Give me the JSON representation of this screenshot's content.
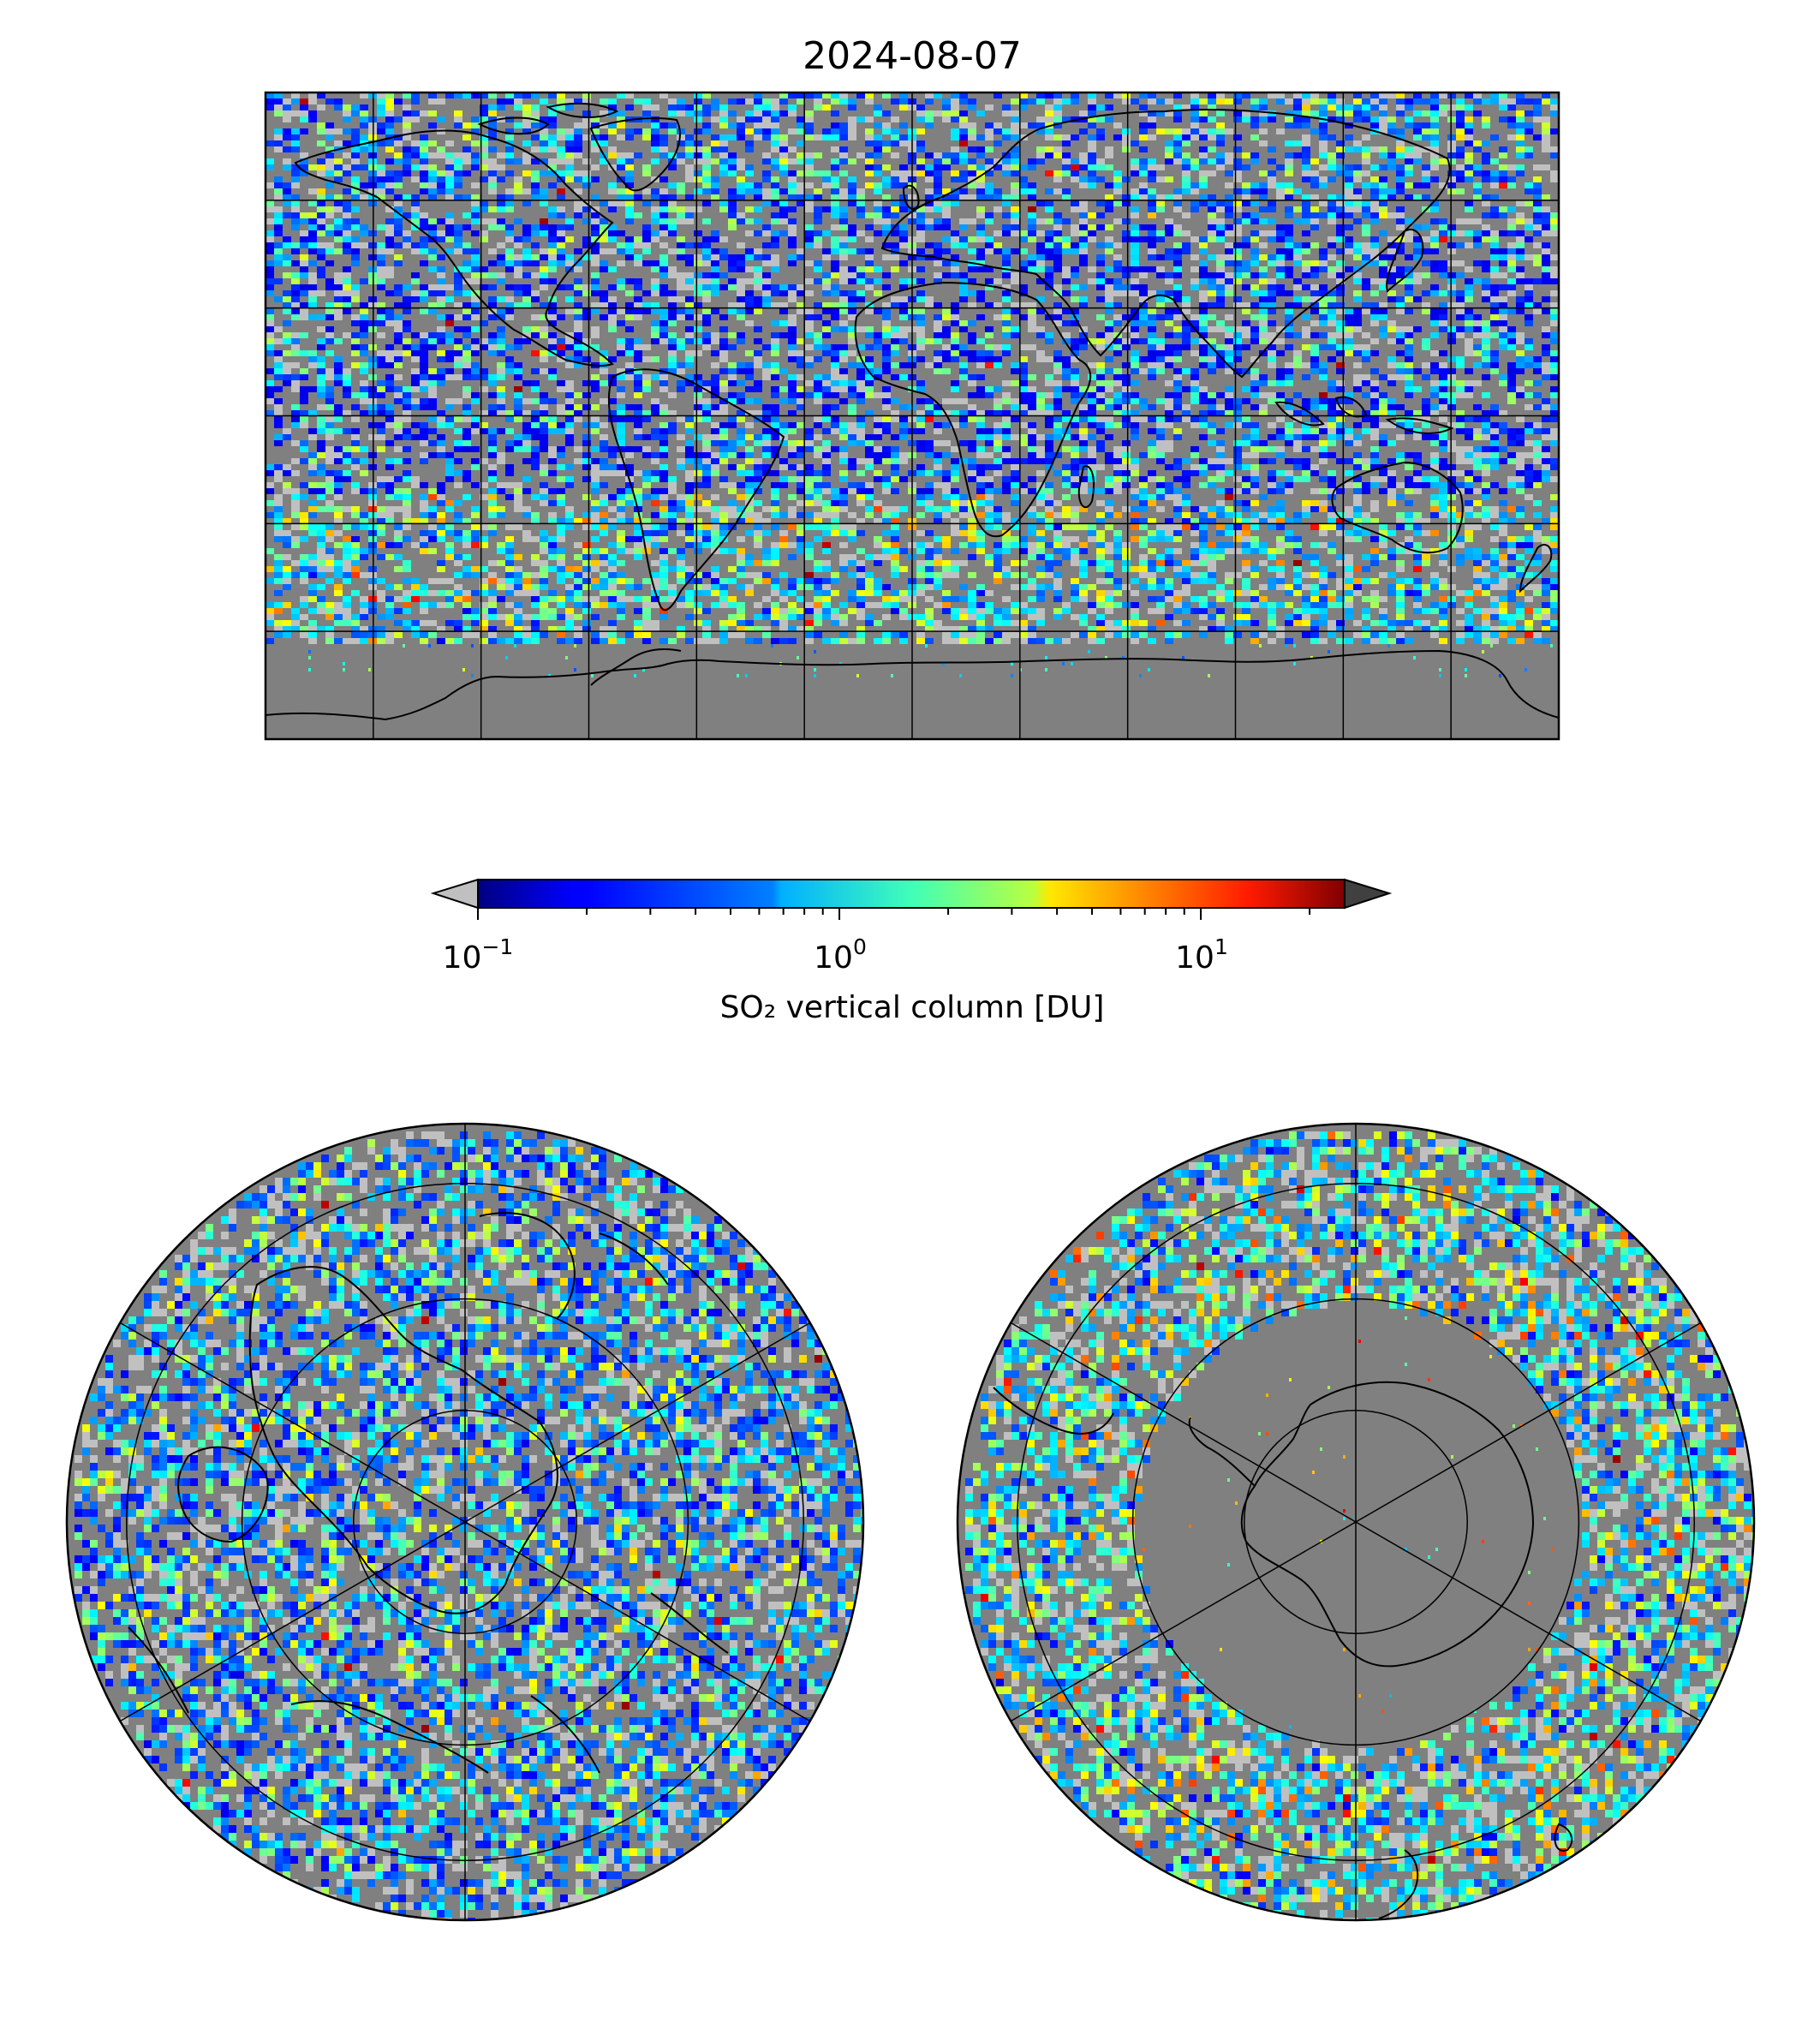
{
  "figure": {
    "title": "2024-08-07",
    "colorbar": {
      "label": "SO₂ vertical column [DU]",
      "scale": "log",
      "range": [
        0.1,
        25
      ],
      "ticks": [
        {
          "base": "10",
          "exp": "−1",
          "value": 0.1
        },
        {
          "base": "10",
          "exp": "0",
          "value": 1
        },
        {
          "base": "10",
          "exp": "1",
          "value": 10
        }
      ],
      "colormap": "jet",
      "under_color": "#c0c0c0",
      "over_color": "#404040",
      "extend": "both"
    },
    "maps": [
      {
        "name": "global",
        "projection": "equirectangular",
        "graticule_deg": 30
      },
      {
        "name": "north-polar",
        "projection": "polar-stereographic",
        "hemisphere": "north"
      },
      {
        "name": "south-polar",
        "projection": "polar-stereographic",
        "hemisphere": "south"
      }
    ],
    "colors": {
      "no_data": "#808080",
      "background": "#ffffff",
      "grid": "#000000",
      "coastline": "#000000"
    }
  }
}
